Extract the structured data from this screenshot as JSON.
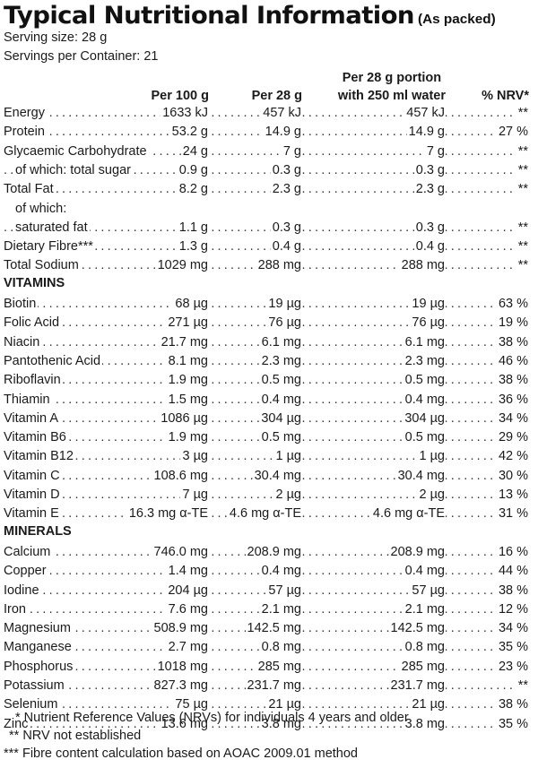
{
  "header": {
    "title": "Typical Nutritional Information",
    "subtitle": "(As packed)",
    "serving_size": "Serving size: 28 g",
    "servings_per_container": "Servings per Container: 21"
  },
  "columns": {
    "per100": "Per 100 g",
    "per28": "Per 28 g",
    "portion_line1": "Per 28 g portion",
    "portion_line2": "with 250 ml water",
    "nrv": "% NRV*"
  },
  "nutrients": [
    {
      "name": "Energy",
      "per100": "1633 kJ",
      "per28": "457 kJ",
      "portion": "457 kJ",
      "nrv": "**"
    },
    {
      "name": "Protein",
      "per100": "53.2 g",
      "per28": "14.9 g",
      "portion": "14.9 g",
      "nrv": "27 %"
    },
    {
      "name": "Glycaemic Carbohydrate",
      "per100": "24 g",
      "per28": "7 g",
      "portion": "7 g",
      "nrv": "**"
    },
    {
      "name": "of which: total sugar",
      "per100": "0.9 g",
      "per28": "0.3 g",
      "portion": "0.3 g",
      "nrv": "**"
    },
    {
      "name": "Total Fat",
      "per100": "8.2 g",
      "per28": "2.3 g",
      "portion": "2.3 g",
      "nrv": "**"
    },
    {
      "name": "of which:"
    },
    {
      "name": "saturated fat",
      "per100": "1.1 g",
      "per28": "0.3 g",
      "portion": "0.3 g",
      "nrv": "**"
    },
    {
      "name": "Dietary Fibre***",
      "per100": "1.3 g",
      "per28": "0.4 g",
      "portion": "0.4 g",
      "nrv": "**"
    },
    {
      "name": "Total Sodium",
      "per100": "1029 mg",
      "per28": "288 mg",
      "portion": "288 mg",
      "nrv": "**"
    }
  ],
  "vitamins_heading": "VITAMINS",
  "vitamins": [
    {
      "name": "Biotin",
      "per100": "68 µg",
      "per28": "19 µg",
      "portion": "19 µg",
      "nrv": "63 %"
    },
    {
      "name": "Folic Acid",
      "per100": "271 µg",
      "per28": "76 µg",
      "portion": "76 µg",
      "nrv": "19 %"
    },
    {
      "name": "Niacin",
      "per100": "21.7 mg",
      "per28": "6.1 mg",
      "portion": "6.1 mg",
      "nrv": "38 %"
    },
    {
      "name": "Pantothenic Acid",
      "per100": "8.1 mg",
      "per28": "2.3 mg",
      "portion": "2.3 mg",
      "nrv": "46 %"
    },
    {
      "name": "Riboflavin",
      "per100": "1.9 mg",
      "per28": "0.5 mg",
      "portion": "0.5 mg",
      "nrv": "38 %"
    },
    {
      "name": "Thiamin",
      "per100": "1.5 mg",
      "per28": "0.4 mg",
      "portion": "0.4 mg",
      "nrv": "36 %"
    },
    {
      "name": "Vitamin A",
      "per100": "1086 µg",
      "per28": "304 µg",
      "portion": "304 µg",
      "nrv": "34 %"
    },
    {
      "name": "Vitamin B6",
      "per100": "1.9 mg",
      "per28": "0.5 mg",
      "portion": "0.5 mg",
      "nrv": "29 %"
    },
    {
      "name": "Vitamin B12",
      "per100": "3 µg",
      "per28": "1 µg",
      "portion": "1 µg",
      "nrv": "42 %"
    },
    {
      "name": "Vitamin C",
      "per100": "108.6 mg",
      "per28": "30.4 mg",
      "portion": "30.4 mg",
      "nrv": "30 %"
    },
    {
      "name": "Vitamin D",
      "per100": "7 µg",
      "per28": "2 µg",
      "portion": "2 µg",
      "nrv": "13 %"
    },
    {
      "name": "Vitamin E",
      "per100": "16.3 mg α-TE",
      "per28": "4.6 mg α-TE",
      "portion": "4.6 mg α-TE",
      "nrv": "31 %"
    }
  ],
  "minerals_heading": "MINERALS",
  "minerals": [
    {
      "name": "Calcium",
      "per100": "746.0 mg",
      "per28": "208.9 mg",
      "portion": "208.9 mg",
      "nrv": "16 %"
    },
    {
      "name": "Copper",
      "per100": "1.4 mg",
      "per28": "0.4 mg",
      "portion": "0.4 mg",
      "nrv": "44 %"
    },
    {
      "name": "Iodine",
      "per100": "204 µg",
      "per28": "57 µg",
      "portion": "57 µg",
      "nrv": "38 %"
    },
    {
      "name": "Iron",
      "per100": "7.6 mg",
      "per28": "2.1 mg",
      "portion": "2.1 mg",
      "nrv": "12 %"
    },
    {
      "name": "Magnesium",
      "per100": "508.9 mg",
      "per28": "142.5 mg",
      "portion": "142.5 mg",
      "nrv": "34 %"
    },
    {
      "name": "Manganese",
      "per100": "2.7 mg",
      "per28": "0.8 mg",
      "portion": "0.8 mg",
      "nrv": "35 %"
    },
    {
      "name": "Phosphorus",
      "per100": "1018 mg",
      "per28": "285 mg",
      "portion": "285 mg",
      "nrv": "23 %"
    },
    {
      "name": "Potassium",
      "per100": "827.3 mg",
      "per28": "231.7 mg",
      "portion": "231.7 mg",
      "nrv": "**"
    },
    {
      "name": "Selenium",
      "per100": "75 µg",
      "per28": "21 µg",
      "portion": "21 µg",
      "nrv": "38 %"
    },
    {
      "name": "Zinc",
      "per100": "13.6 mg",
      "per28": "3.8 mg",
      "portion": "3.8 mg",
      "nrv": "35 %"
    }
  ],
  "footnotes": [
    "* Nutrient Reference Values (NRVs) for individuals 4 years and older",
    "** NRV not established",
    "*** Fibre content calculation based on AOAC 2009.01 method"
  ]
}
